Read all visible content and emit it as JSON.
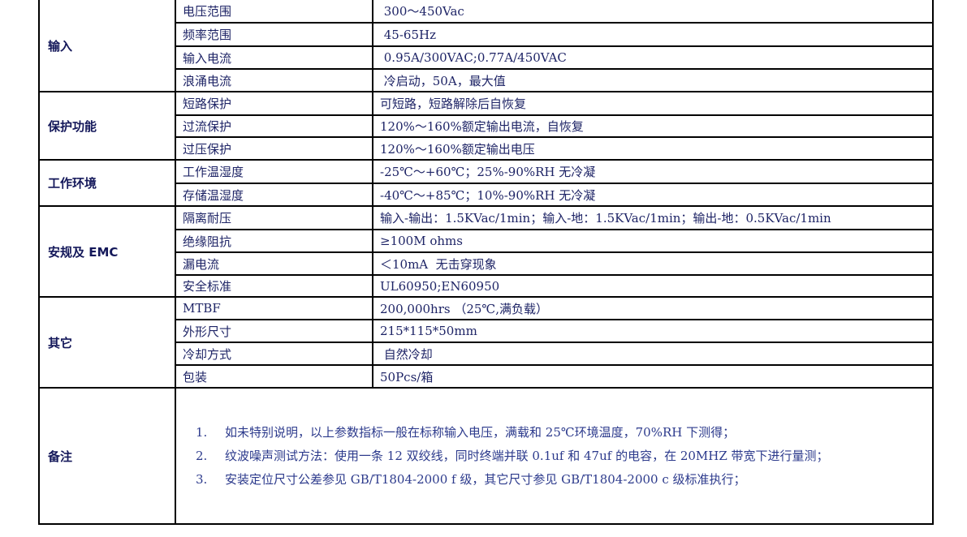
{
  "groups": [
    {
      "label": "输入",
      "rows": [
        [
          "电压范围",
          " 300～450Vac"
        ],
        [
          "频率范围",
          " 45-65Hz"
        ],
        [
          "输入电流",
          " 0.95A/300VAC;0.77A/450VAC"
        ],
        [
          "浪涌电流",
          " 冷启动，50A，最大值"
        ]
      ]
    },
    {
      "label": "保护功能",
      "rows": [
        [
          "短路保护",
          "可短路，短路解除后自恢复"
        ],
        [
          "过流保护",
          "120%～160%额定输出电流，自恢复"
        ],
        [
          "过压保护",
          "120%～160%额定输出电压"
        ]
      ]
    },
    {
      "label": "工作环境",
      "rows": [
        [
          "工作温湿度",
          "-25℃～+60℃；25%-90%RH 无冷凝"
        ],
        [
          "存储温湿度",
          "-40℃～+85℃；10%-90%RH 无冷凝"
        ]
      ]
    },
    {
      "label": "安规及 EMC",
      "rows": [
        [
          "隔离耐压",
          "输入-输出：1.5KVac/1min；输入-地：1.5KVac/1min；输出-地：0.5KVac/1min"
        ],
        [
          "绝缘阻抗",
          "≥100M ohms"
        ],
        [
          "漏电流",
          "＜10mA  无击穿现象"
        ],
        [
          "安全标准",
          "UL60950;EN60950"
        ]
      ]
    },
    {
      "label": "其它",
      "rows": [
        [
          "MTBF",
          "200,000hrs （25℃,满负载）"
        ],
        [
          "外形尺寸",
          "215*115*50mm"
        ],
        [
          "冷却方式",
          " 自然冷却"
        ],
        [
          "包装",
          "50Pcs/箱"
        ]
      ]
    }
  ],
  "notes": {
    "label": "备注",
    "items": [
      {
        "num": "1.",
        "text": "如未特别说明，以上参数指标一般在标称输入电压，满载和 25℃环境温度，70%RH 下测得；"
      },
      {
        "num": "2.",
        "text": "纹波噪声测试方法：使用一条 12 双绞线，同时终端并联 0.1uf 和 47uf 的电容，在 20MHZ 带宽下进行量测；"
      },
      {
        "num": "3.",
        "text": "安装定位尺寸公差参见 GB/T1804-2000 f 级，其它尺寸参见 GB/T1804-2000 c 级标准执行；"
      }
    ]
  }
}
